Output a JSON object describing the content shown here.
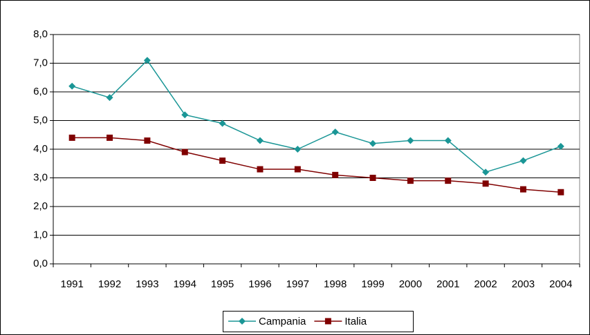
{
  "chart_data": {
    "type": "line",
    "categories": [
      "1991",
      "1992",
      "1993",
      "1994",
      "1995",
      "1996",
      "1997",
      "1998",
      "1999",
      "2000",
      "2001",
      "2002",
      "2003",
      "2004"
    ],
    "series": [
      {
        "name": "Campania",
        "color": "#1a9696",
        "marker": "diamond",
        "values": [
          6.2,
          5.8,
          7.1,
          5.2,
          4.9,
          4.3,
          4.0,
          4.6,
          4.2,
          4.3,
          4.3,
          3.2,
          3.6,
          4.1
        ]
      },
      {
        "name": "Italia",
        "color": "#800000",
        "marker": "square",
        "values": [
          4.4,
          4.4,
          4.3,
          3.9,
          3.6,
          3.3,
          3.3,
          3.1,
          3.0,
          2.9,
          2.9,
          2.8,
          2.6,
          2.5
        ]
      }
    ],
    "ylim": [
      0,
      8
    ],
    "yticks": [
      {
        "value": 0,
        "label": "0,0"
      },
      {
        "value": 1,
        "label": "1,0"
      },
      {
        "value": 2,
        "label": "2,0"
      },
      {
        "value": 3,
        "label": "3,0"
      },
      {
        "value": 4,
        "label": "4,0"
      },
      {
        "value": 5,
        "label": "5,0"
      },
      {
        "value": 6,
        "label": "6,0"
      },
      {
        "value": 7,
        "label": "7,0"
      },
      {
        "value": 8,
        "label": "8,0"
      }
    ],
    "grid": true,
    "legend": "bottom"
  }
}
